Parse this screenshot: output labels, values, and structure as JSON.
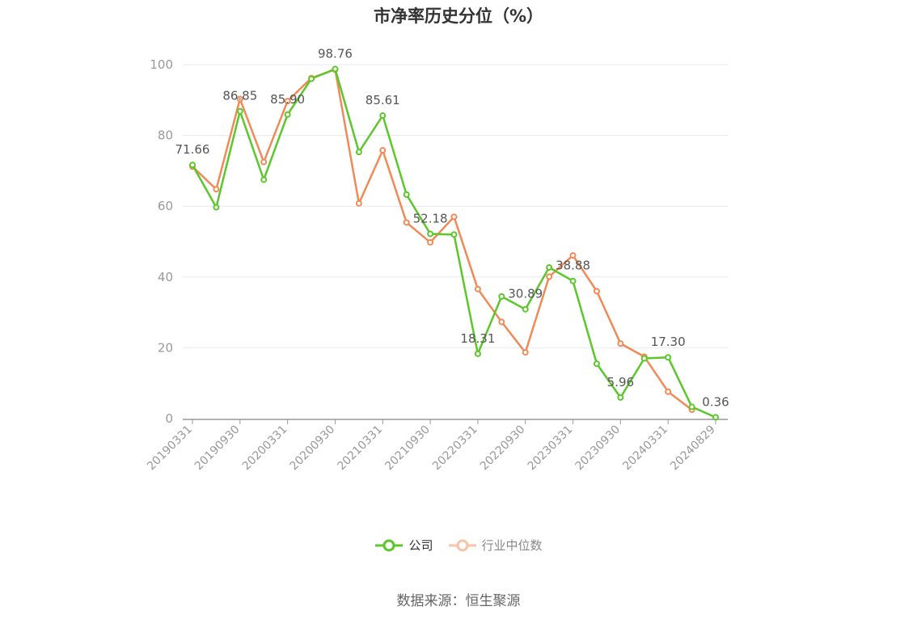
{
  "title": "市净率历史分位（%）",
  "source": "数据来源：恒生聚源",
  "legend": {
    "company": "公司",
    "industry": "行业中位数"
  },
  "colors": {
    "company": "#5cc72a",
    "industry": "#f08a57",
    "industry_legend": "#f8c3a7",
    "grid": "#e6e8ef",
    "axis": "#999999",
    "tick_text": "#999999",
    "label_text": "#555555"
  },
  "chart_data": {
    "type": "line",
    "title": "市净率历史分位（%）",
    "ylim": [
      0,
      100
    ],
    "yticks": [
      0,
      20,
      40,
      60,
      80,
      100
    ],
    "grid": true,
    "legend_position": "bottom",
    "x": [
      "20190331",
      "20190630",
      "20190930",
      "20191231",
      "20200331",
      "20200630",
      "20200930",
      "20201231",
      "20210331",
      "20210630",
      "20210930",
      "20211231",
      "20220331",
      "20220630",
      "20220930",
      "20221231",
      "20230331",
      "20230630",
      "20230930",
      "20231231",
      "20240331",
      "20240630",
      "20240829"
    ],
    "x_tick_labels": [
      "20190331",
      "20190930",
      "20200331",
      "20200930",
      "20210331",
      "20210930",
      "20220331",
      "20220930",
      "20230331",
      "20230930",
      "20240331",
      "20240829"
    ],
    "series": [
      {
        "name": "公司",
        "values": [
          71.66,
          59.7,
          86.85,
          67.5,
          85.9,
          96.0,
          98.76,
          75.3,
          85.61,
          63.3,
          52.18,
          52.0,
          18.31,
          34.5,
          30.89,
          42.7,
          38.88,
          15.5,
          5.96,
          17.0,
          17.3,
          3.3,
          0.36
        ],
        "data_labels": {
          "0": "71.66",
          "2": "86.85",
          "4": "85.90",
          "6": "98.76",
          "8": "85.61",
          "10": "52.18",
          "12": "18.31",
          "14": "30.89",
          "16": "38.88",
          "18": "5.96",
          "20": "17.30",
          "22": "0.36"
        }
      },
      {
        "name": "行业中位数",
        "values": [
          71.2,
          64.8,
          90.3,
          72.5,
          89.7,
          96.2,
          98.6,
          60.8,
          75.8,
          55.4,
          49.8,
          57.0,
          36.6,
          27.3,
          18.7,
          40.1,
          46.1,
          36.0,
          21.2,
          17.5,
          7.6,
          2.5,
          null
        ]
      }
    ]
  }
}
